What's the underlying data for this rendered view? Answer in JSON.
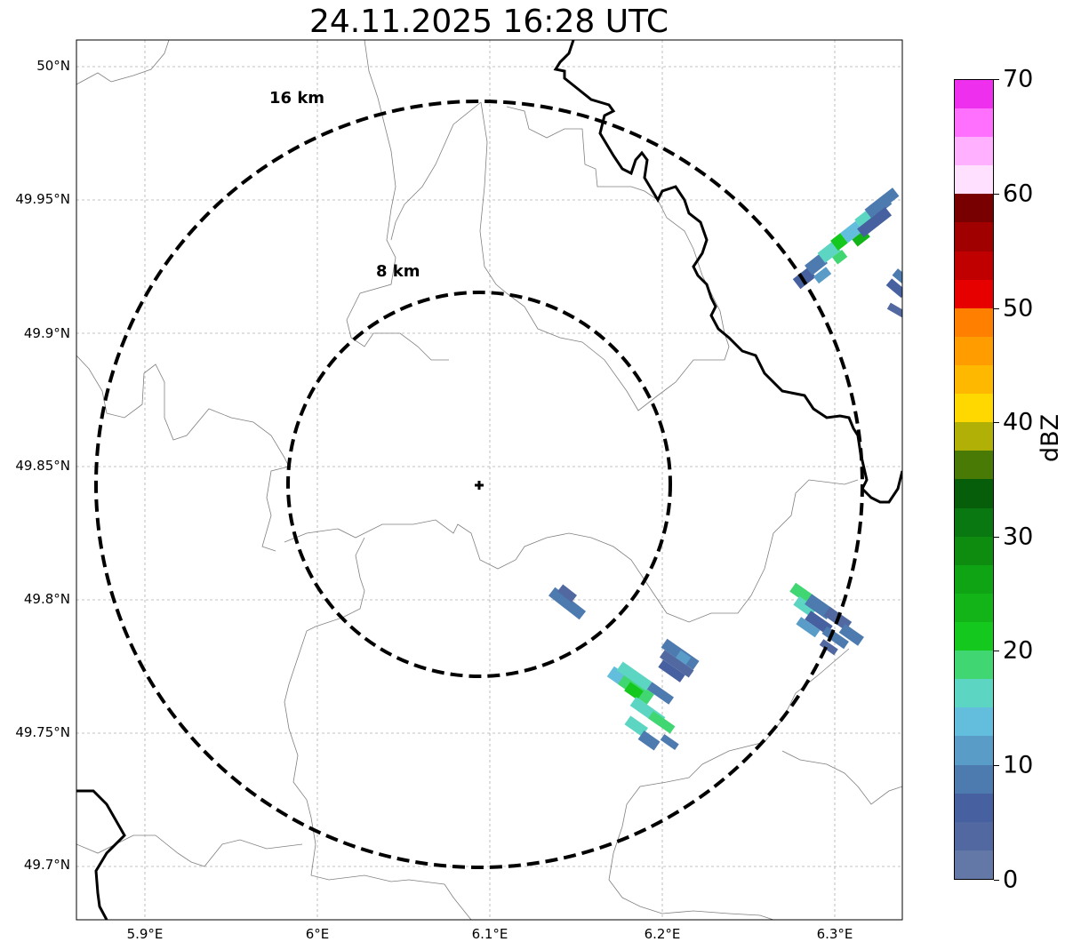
{
  "title": "24.11.2025 16:28 UTC",
  "axes": {
    "y_ticks": [
      "50°N",
      "49.95°N",
      "49.9°N",
      "49.85°N",
      "49.8°N",
      "49.75°N",
      "49.7°N"
    ],
    "x_ticks": [
      "5.9°E",
      "6°E",
      "6.1°E",
      "6.2°E",
      "6.3°E"
    ],
    "lon_range": [
      5.86,
      6.34
    ],
    "lat_range": [
      49.68,
      50.01
    ]
  },
  "radar_site": {
    "lon": 6.095,
    "lat": 49.843,
    "icon": "plus-marker-icon"
  },
  "range_rings": [
    {
      "label": "8 km",
      "radius_km": 8
    },
    {
      "label": "16 km",
      "radius_km": 16
    }
  ],
  "colorbar": {
    "label": "dBZ",
    "ticks": [
      "0",
      "10",
      "20",
      "30",
      "40",
      "50",
      "60",
      "70"
    ],
    "colors": [
      "#6478a8",
      "#5268a0",
      "#4760a0",
      "#4d7bb0",
      "#5a9cc8",
      "#62bedc",
      "#5cd6c2",
      "#40d672",
      "#14c81e",
      "#12b418",
      "#0fa414",
      "#0d8c10",
      "#0a7810",
      "#065e0a",
      "#4a7a06",
      "#b0b006",
      "#ffd800",
      "#ffb800",
      "#ff9c00",
      "#ff8000",
      "#e60000",
      "#c00000",
      "#a00000",
      "#780000",
      "#ffe0ff",
      "#ffb0ff",
      "#ff70ff",
      "#ee30ee"
    ]
  }
}
